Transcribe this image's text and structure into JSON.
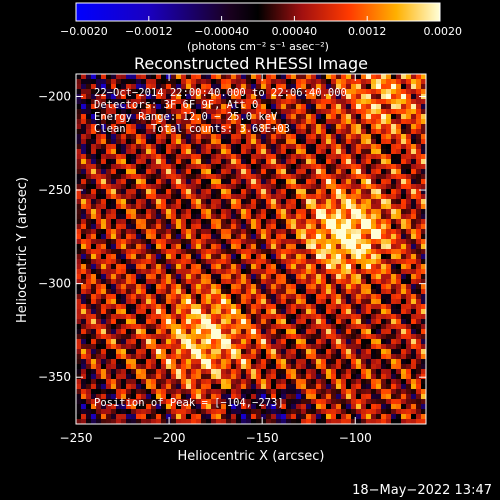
{
  "chart_data": {
    "type": "heatmap",
    "title": "Reconstructed RHESSI Image",
    "xlabel": "Heliocentric X (arcsec)",
    "ylabel": "Heliocentric Y (arcsec)",
    "xlim": [
      -250,
      -62
    ],
    "ylim": [
      -375,
      -188
    ],
    "x_ticks": [
      -250,
      -200,
      -150,
      -100
    ],
    "y_ticks": [
      -200,
      -250,
      -300,
      -350
    ],
    "x_tick_labels": [
      "−250",
      "−200",
      "−150",
      "−100"
    ],
    "y_tick_labels": [
      "−200",
      "−250",
      "−300",
      "−350"
    ],
    "colorbar": {
      "range": [
        -0.002,
        0.002
      ],
      "ticks": [
        -0.002,
        -0.0012,
        -0.0004,
        0.0004,
        0.0012,
        0.002
      ],
      "tick_labels": [
        "−0.0020",
        "−0.0012",
        "−0.00040",
        "0.00040",
        "0.0012",
        "0.0020"
      ],
      "units_label": "(photons cm⁻² s⁻¹ asec⁻²)"
    },
    "sources": [
      {
        "x": -104,
        "y": -273,
        "peak": 0.002
      },
      {
        "x": -180,
        "y": -328,
        "peak": 0.0016
      },
      {
        "x": -85,
        "y": -200,
        "peak": 0.0011
      }
    ],
    "grid": false
  },
  "annotations": {
    "time_range": "22−Oct−2014 22:00:40.000 to 22:06:40.000",
    "detectors": "Detectors: 3F 6F 9F, Att 0",
    "energy_range": "Energy Range: 12.0 − 25.0 keV",
    "clean_line": "Clean    Total counts: 3.68E+03",
    "peak_position": "Position of Peak = [−104,−273]"
  },
  "footer": {
    "timestamp": "18−May−2022 13:47"
  }
}
